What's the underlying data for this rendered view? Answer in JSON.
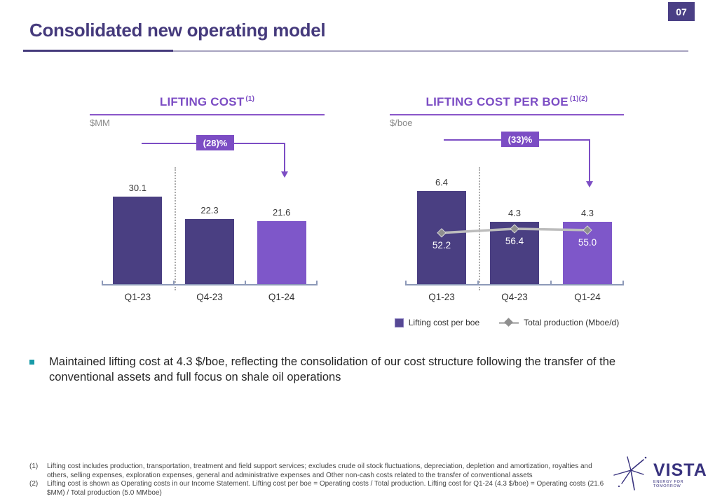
{
  "page": {
    "number": "07"
  },
  "title": "Consolidated new operating model",
  "bullet": {
    "text": "Maintained lifting cost at 4.3 $/boe, reflecting the consolidation of our cost structure following the transfer of the conventional assets and full focus on shale oil operations"
  },
  "footnotes": [
    {
      "marker": "(1)",
      "text": "Lifting cost includes production, transportation, treatment and field support services; excludes crude oil stock fluctuations, depreciation, depletion and amortization, royalties and others, selling expenses, exploration expenses, general and administrative expenses and Other non-cash costs related to the transfer of conventional assets"
    },
    {
      "marker": "(2)",
      "text": "Lifting cost is shown as Operating costs in our Income Statement. Lifting cost per boe = Operating costs / Total production. Lifting cost for Q1-24 (4.3 $/boe) = Operating costs (21.6 $MM) / Total production (5.0 MMboe)"
    }
  ],
  "logo": {
    "name": "VISTA",
    "tagline": "ENERGY FOR TOMORROW"
  },
  "colors": {
    "accent_purple": "#7c4dc4",
    "title_purple": "#453a7c",
    "bar_dark": "#4a3f82",
    "bar_light": "#7e57c9",
    "axis_slate": "#8d99b8",
    "line_gray": "#bcbcbc",
    "marker_gray": "#8f8f8f",
    "bullet_teal": "#189aa8",
    "logo_navy": "#38327e"
  },
  "chart_data": [
    {
      "type": "bar",
      "title": "LIFTING COST",
      "title_sup": "(1)",
      "unit": "$MM",
      "annotation": "(28)%",
      "categories": [
        "Q1-23",
        "Q4-23",
        "Q1-24"
      ],
      "values": [
        30.1,
        22.3,
        21.6
      ],
      "bar_colors": [
        "#4a3f82",
        "#4a3f82",
        "#7e57c9"
      ],
      "ylim": [
        0,
        40
      ],
      "grid": false,
      "legend_position": "none"
    },
    {
      "type": "bar+line",
      "title": "LIFTING COST PER BOE",
      "title_sup": "(1)(2)",
      "unit": "$/boe",
      "annotation": "(33)%",
      "categories": [
        "Q1-23",
        "Q4-23",
        "Q1-24"
      ],
      "series": [
        {
          "name": "Lifting cost per boe",
          "type": "bar",
          "values": [
            6.4,
            4.3,
            4.3
          ]
        },
        {
          "name": "Total production (Mboe/d)",
          "type": "line",
          "values": [
            52.2,
            56.4,
            55.0
          ]
        }
      ],
      "bar_colors": [
        "#4a3f82",
        "#4a3f82",
        "#7e57c9"
      ],
      "ylim": [
        0,
        8
      ],
      "y2lim": [
        0,
        120
      ],
      "grid": false,
      "legend_position": "bottom"
    }
  ]
}
